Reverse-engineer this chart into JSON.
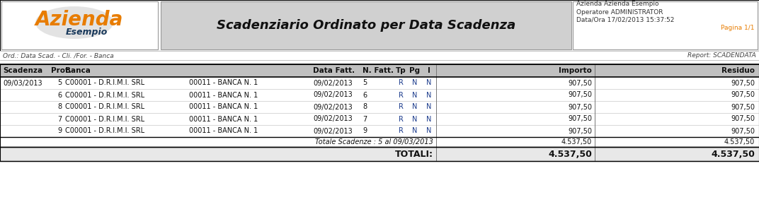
{
  "title": "Scadenziario Ordinato per Data Scadenza",
  "logo_text1": "Azienda",
  "logo_text2": "Esempio",
  "header_info_line1": "Azienda Azienda Esempio",
  "header_info_line2": "Operatore ADMINISTRATOR",
  "header_info_line3": "Data/Ora 17/02/2013 15:37:52",
  "header_info_line4": "Pagina 1/1",
  "filter_text": "Ord.: Data Scad. - Cli. /For. - Banca",
  "report_text": "Report: SCADENDATA",
  "rows": [
    [
      "09/03/2013",
      "5",
      "C00001 - D.R.I.M.I. SRL",
      "00011 - BANCA N. 1",
      "09/02/2013",
      "5",
      "R",
      "N",
      "N",
      "907,50",
      "907,50"
    ],
    [
      "",
      "6",
      "C00001 - D.R.I.M.I. SRL",
      "00011 - BANCA N. 1",
      "09/02/2013",
      "6",
      "R",
      "N",
      "N",
      "907,50",
      "907,50"
    ],
    [
      "",
      "8",
      "C00001 - D.R.I.M.I. SRL",
      "00011 - BANCA N. 1",
      "09/02/2013",
      "8",
      "R",
      "N",
      "N",
      "907,50",
      "907,50"
    ],
    [
      "",
      "7",
      "C00001 - D.R.I.M.I. SRL",
      "00011 - BANCA N. 1",
      "09/02/2013",
      "7",
      "R",
      "N",
      "N",
      "907,50",
      "907,50"
    ],
    [
      "",
      "9",
      "C00001 - D.R.I.M.I. SRL",
      "00011 - BANCA N. 1",
      "09/02/2013",
      "9",
      "R",
      "N",
      "N",
      "907,50",
      "907,50"
    ]
  ],
  "subtotal_label": "Totale Scadenze : 5 al 09/03/2013",
  "subtotal_importo": "4.537,50",
  "subtotal_residuo": "4.537,50",
  "total_label": "TOTALI:",
  "total_importo": "4.537,50",
  "total_residuo": "4.537,50",
  "col_labels": [
    "Scadenza",
    "Prot.",
    "Banca",
    "Data Fatt.",
    "N. Fatt.",
    "Tp",
    "Pg",
    "I",
    "Importo",
    "Residuo"
  ],
  "bg_white": "#ffffff",
  "bg_light_gray": "#d0d0d0",
  "bg_col_header": "#c0c0c0",
  "color_orange": "#E87C00",
  "color_blue_dark": "#1a3a5c",
  "color_blue_tp": "#1a3a8c",
  "text_dark": "#111111",
  "text_gray": "#555555",
  "border_dark": "#000000",
  "border_light": "#999999"
}
